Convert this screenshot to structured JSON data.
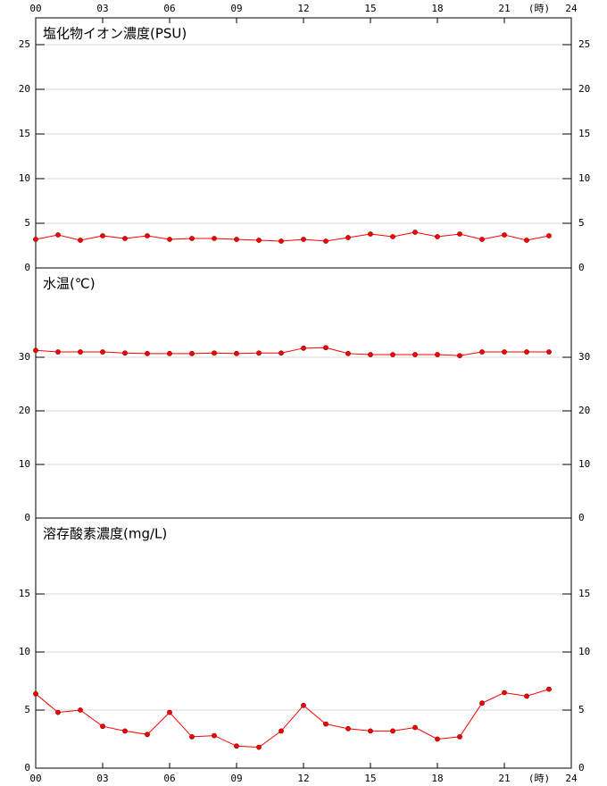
{
  "chart_data": [
    {
      "type": "line",
      "title": "塩化物イオン濃度(PSU)",
      "x_unit": "(時)",
      "xaxis": "top",
      "x": [
        0,
        1,
        2,
        3,
        4,
        5,
        6,
        7,
        8,
        9,
        10,
        11,
        12,
        13,
        14,
        15,
        16,
        17,
        18,
        19,
        20,
        21,
        22,
        23
      ],
      "xlim": [
        0,
        24
      ],
      "xticks": [
        {
          "value": 0,
          "label": "00"
        },
        {
          "value": 3,
          "label": "03"
        },
        {
          "value": 6,
          "label": "06"
        },
        {
          "value": 9,
          "label": "09"
        },
        {
          "value": 12,
          "label": "12"
        },
        {
          "value": 15,
          "label": "15"
        },
        {
          "value": 18,
          "label": "18"
        },
        {
          "value": 21,
          "label": "21"
        },
        {
          "value": 24,
          "label": "24"
        }
      ],
      "ylim": [
        0,
        28
      ],
      "yticks": [
        0,
        5,
        10,
        15,
        20,
        25
      ],
      "grid": true,
      "series": [
        {
          "color": "#ff0000",
          "values": [
            3.2,
            3.7,
            3.1,
            3.6,
            3.3,
            3.6,
            3.2,
            3.3,
            3.3,
            3.2,
            3.1,
            3.0,
            3.2,
            3.0,
            3.4,
            3.8,
            3.5,
            4.0,
            3.5,
            3.8,
            3.2,
            3.7,
            3.1,
            3.6
          ]
        }
      ]
    },
    {
      "type": "line",
      "title": "水温(℃)",
      "x": [
        0,
        1,
        2,
        3,
        4,
        5,
        6,
        7,
        8,
        9,
        10,
        11,
        12,
        13,
        14,
        15,
        16,
        17,
        18,
        19,
        20,
        21,
        22,
        23
      ],
      "xlim": [
        0,
        24
      ],
      "ylim": [
        0,
        46.67
      ],
      "yticks": [
        0,
        10,
        20,
        30
      ],
      "grid": true,
      "series": [
        {
          "color": "#ff0000",
          "values": [
            31.3,
            31.0,
            31.0,
            31.0,
            30.8,
            30.7,
            30.7,
            30.7,
            30.8,
            30.7,
            30.8,
            30.8,
            31.7,
            31.8,
            30.7,
            30.5,
            30.5,
            30.5,
            30.5,
            30.3,
            31.0,
            31.0,
            31.0,
            31.0
          ]
        }
      ]
    },
    {
      "type": "line",
      "title": "溶存酸素濃度(mg/L)",
      "x_unit": "(時)",
      "xaxis": "bottom",
      "x": [
        0,
        1,
        2,
        3,
        4,
        5,
        6,
        7,
        8,
        9,
        10,
        11,
        12,
        13,
        14,
        15,
        16,
        17,
        18,
        19,
        20,
        21,
        22,
        23
      ],
      "xlim": [
        0,
        24
      ],
      "xticks": [
        {
          "value": 0,
          "label": "00"
        },
        {
          "value": 3,
          "label": "03"
        },
        {
          "value": 6,
          "label": "06"
        },
        {
          "value": 9,
          "label": "09"
        },
        {
          "value": 12,
          "label": "12"
        },
        {
          "value": 15,
          "label": "15"
        },
        {
          "value": 18,
          "label": "18"
        },
        {
          "value": 21,
          "label": "21"
        },
        {
          "value": 24,
          "label": "24"
        }
      ],
      "ylim": [
        0,
        21.54
      ],
      "yticks": [
        0,
        5,
        10,
        15
      ],
      "grid": true,
      "series": [
        {
          "color": "#ff0000",
          "values": [
            6.4,
            4.8,
            5.0,
            3.6,
            3.2,
            2.9,
            4.8,
            2.7,
            2.8,
            1.9,
            1.8,
            3.2,
            5.4,
            3.8,
            3.4,
            3.2,
            3.2,
            3.5,
            2.5,
            2.7,
            5.6,
            6.5,
            6.2,
            6.8
          ]
        }
      ]
    }
  ]
}
